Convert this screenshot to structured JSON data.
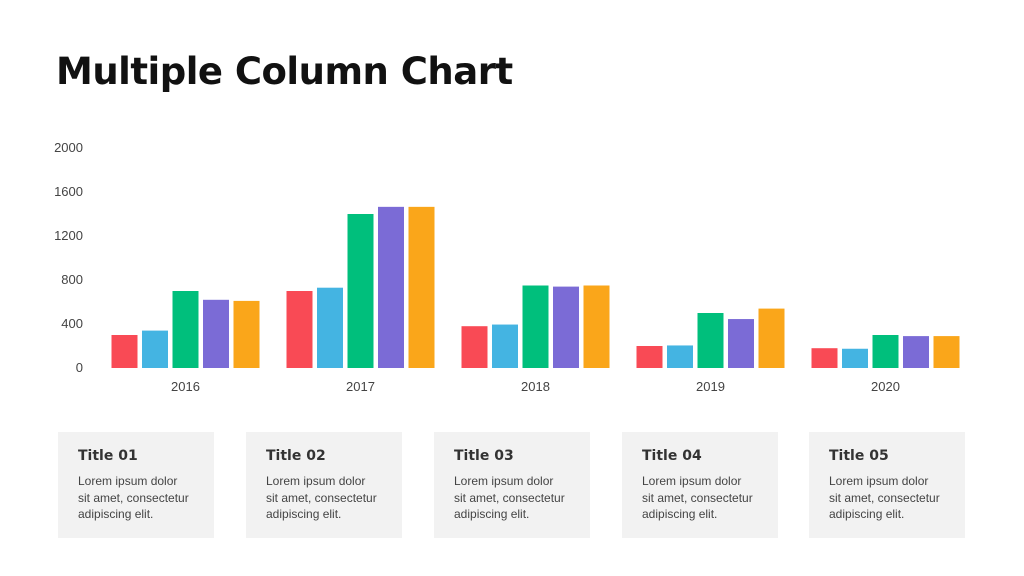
{
  "page": {
    "title": "Multiple Column Chart"
  },
  "chart_data": {
    "type": "bar",
    "title": "",
    "xlabel": "",
    "ylabel": "",
    "ylim": [
      0,
      2000
    ],
    "yticks": [
      0,
      400,
      800,
      1200,
      1600,
      2000
    ],
    "categories": [
      "2016",
      "2017",
      "2018",
      "2019",
      "2020"
    ],
    "grid": false,
    "series": [
      {
        "color": "#f94a55",
        "values": [
          300,
          700,
          380,
          200,
          180
        ]
      },
      {
        "color": "#44b4e2",
        "values": [
          340,
          730,
          395,
          205,
          175
        ]
      },
      {
        "color": "#00bf7c",
        "values": [
          700,
          1400,
          750,
          500,
          300
        ]
      },
      {
        "color": "#7b6bd6",
        "values": [
          620,
          1465,
          740,
          445,
          290
        ]
      },
      {
        "color": "#faa61a",
        "values": [
          610,
          1465,
          750,
          540,
          290
        ]
      }
    ]
  },
  "cards": [
    {
      "title": "Title 01",
      "lines": [
        "Lorem ipsum dolor",
        "sit amet, consectetur",
        "adipiscing elit."
      ]
    },
    {
      "title": "Title 02",
      "lines": [
        "Lorem ipsum dolor",
        "sit amet, consectetur",
        "adipiscing elit."
      ]
    },
    {
      "title": "Title 03",
      "lines": [
        "Lorem ipsum dolor",
        "sit amet, consectetur",
        "adipiscing elit."
      ]
    },
    {
      "title": "Title 04",
      "lines": [
        "Lorem ipsum dolor",
        "sit amet, consectetur",
        "adipiscing elit."
      ]
    },
    {
      "title": "Title 05",
      "lines": [
        "Lorem ipsum dolor",
        "sit amet, consectetur",
        "adipiscing elit."
      ]
    }
  ]
}
